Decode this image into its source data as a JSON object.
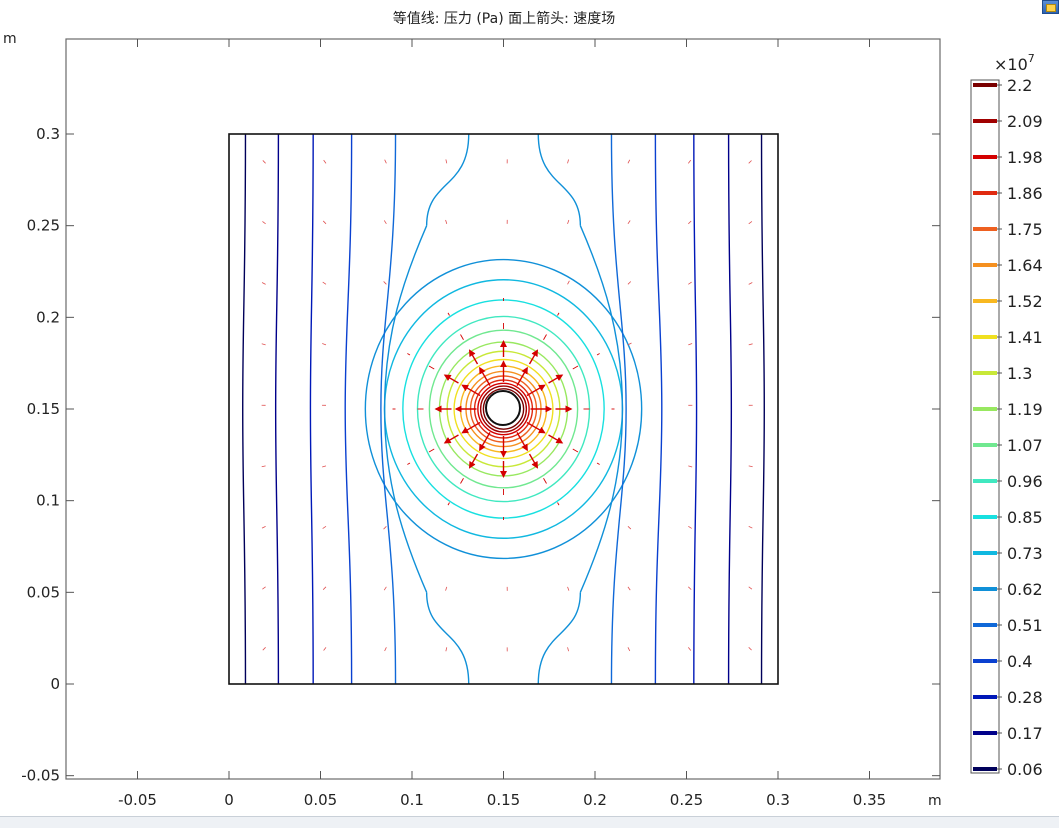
{
  "plot_title": "等值线: 压力 (Pa)  面上箭头: 速度场",
  "x_unit": "m",
  "y_unit": "m",
  "icons": {
    "corner": "graphics-window-icon"
  },
  "chart_data": {
    "type": "contour",
    "title": "等值线: 压力 (Pa)  面上箭头: 速度场",
    "xlabel": "m",
    "ylabel": "m",
    "xlim": [
      -0.09,
      0.39
    ],
    "ylim": [
      -0.053,
      0.37
    ],
    "x_ticks": [
      -0.05,
      0,
      0.05,
      0.1,
      0.15,
      0.2,
      0.25,
      0.3,
      0.35
    ],
    "x_tick_labels": [
      "-0.05",
      "0",
      "0.05",
      "0.1",
      "0.15",
      "0.2",
      "0.25",
      "0.3",
      "0.35"
    ],
    "y_ticks": [
      -0.05,
      0,
      0.05,
      0.1,
      0.15,
      0.2,
      0.25,
      0.3
    ],
    "y_tick_labels": [
      "-0.05",
      "0",
      "0.05",
      "0.1",
      "0.15",
      "0.2",
      "0.25",
      "0.3"
    ],
    "domain": {
      "x": [
        0,
        0.3
      ],
      "y": [
        0,
        0.3
      ]
    },
    "hole": {
      "center": [
        0.15,
        0.15
      ],
      "radius": 0.0095
    },
    "colorbar": {
      "exponent_label": "×10",
      "exponent": "7",
      "levels": [
        {
          "label": "2.2",
          "color": "#7a0000"
        },
        {
          "label": "2.09",
          "color": "#a00000"
        },
        {
          "label": "1.98",
          "color": "#d40000"
        },
        {
          "label": "1.86",
          "color": "#e02a10"
        },
        {
          "label": "1.75",
          "color": "#ee6020"
        },
        {
          "label": "1.64",
          "color": "#f59020"
        },
        {
          "label": "1.52",
          "color": "#f8b820"
        },
        {
          "label": "1.41",
          "color": "#f0e020"
        },
        {
          "label": "1.3",
          "color": "#c8e838"
        },
        {
          "label": "1.19",
          "color": "#98e860"
        },
        {
          "label": "1.07",
          "color": "#70e890"
        },
        {
          "label": "0.96",
          "color": "#40e8c0"
        },
        {
          "label": "0.85",
          "color": "#18e0e0"
        },
        {
          "label": "0.73",
          "color": "#10b8e0"
        },
        {
          "label": "0.62",
          "color": "#1090d8"
        },
        {
          "label": "0.51",
          "color": "#0f68d8"
        },
        {
          "label": "0.4",
          "color": "#0a40d0"
        },
        {
          "label": "0.28",
          "color": "#0018b8"
        },
        {
          "label": "0.17",
          "color": "#00008a"
        },
        {
          "label": "0.06",
          "color": "#00005a"
        }
      ]
    },
    "contour_rings": [
      {
        "a": 0.011,
        "b": 0.011,
        "color": "#7a0000"
      },
      {
        "a": 0.0125,
        "b": 0.0125,
        "color": "#a00000"
      },
      {
        "a": 0.014,
        "b": 0.014,
        "color": "#d40000"
      },
      {
        "a": 0.0158,
        "b": 0.0158,
        "color": "#e02a10"
      },
      {
        "a": 0.018,
        "b": 0.018,
        "color": "#ee6020"
      },
      {
        "a": 0.0205,
        "b": 0.0205,
        "color": "#f59020"
      },
      {
        "a": 0.0235,
        "b": 0.0235,
        "color": "#f8b820"
      },
      {
        "a": 0.027,
        "b": 0.027,
        "color": "#f0e020"
      },
      {
        "a": 0.0308,
        "b": 0.0315,
        "color": "#c8e838"
      },
      {
        "a": 0.035,
        "b": 0.0365,
        "color": "#98e860"
      },
      {
        "a": 0.0405,
        "b": 0.043,
        "color": "#70e890"
      },
      {
        "a": 0.047,
        "b": 0.0505,
        "color": "#40e8c0"
      },
      {
        "a": 0.055,
        "b": 0.0595,
        "color": "#18e0e0"
      },
      {
        "a": 0.065,
        "b": 0.0705,
        "color": "#10b8e0"
      },
      {
        "a": 0.0755,
        "b": 0.0815,
        "color": "#1090d8"
      }
    ],
    "contour_columns": [
      {
        "x_edge": 0.009,
        "x_mid": 0.0075,
        "color": "#00005a"
      },
      {
        "x_edge": 0.027,
        "x_mid": 0.0255,
        "color": "#00008a"
      },
      {
        "x_edge": 0.046,
        "x_mid": 0.0445,
        "color": "#0018b8"
      },
      {
        "x_edge": 0.067,
        "x_mid": 0.0635,
        "color": "#0a40d0"
      },
      {
        "x_edge": 0.091,
        "x_mid": 0.083,
        "color": "#0f68d8"
      }
    ],
    "hourglass": {
      "x_edge": 0.131,
      "x_waist": 0.108,
      "y_top": 0.3,
      "color": "#1090d8"
    }
  }
}
